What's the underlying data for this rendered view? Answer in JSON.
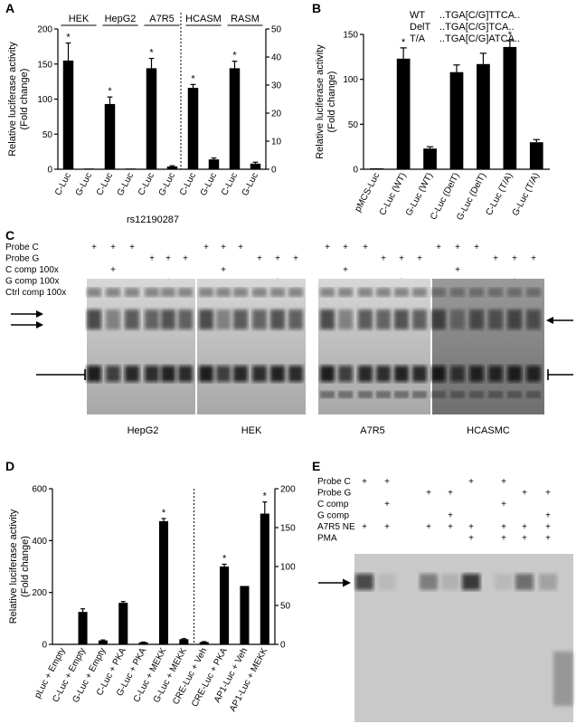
{
  "panels": {
    "A": "A",
    "B": "B",
    "C": "C",
    "D": "D",
    "E": "E"
  },
  "chart_data": [
    {
      "id": "A",
      "type": "bar",
      "ylabel": "Relative luciferase activity (Fold change)",
      "ylabel_lines": [
        "Relative luciferase activity",
        "(Fold change)"
      ],
      "xlabel": "rs12190287",
      "cell_lines": [
        "HEK",
        "HepG2",
        "A7R5",
        "HCASM",
        "RASM"
      ],
      "categories": [
        "C-Luc",
        "G-Luc",
        "C-Luc",
        "G-Luc",
        "C-Luc",
        "G-Luc",
        "C-Luc",
        "G-Luc",
        "C-Luc",
        "G-Luc"
      ],
      "values": [
        155,
        1,
        93,
        1,
        144,
        4,
        29,
        3.5,
        36,
        2
      ],
      "errors": [
        25,
        0,
        10,
        0,
        14,
        1,
        1.2,
        0.5,
        2.5,
        0.5
      ],
      "axis": [
        "left",
        "left",
        "left",
        "left",
        "left",
        "left",
        "right",
        "right",
        "right",
        "right"
      ],
      "significant": [
        true,
        false,
        true,
        false,
        true,
        false,
        true,
        false,
        true,
        false
      ],
      "ylim_left": [
        0,
        200
      ],
      "yticks_left": [
        "0",
        "50",
        "100",
        "150",
        "200"
      ],
      "ylim_right": [
        0,
        50
      ],
      "yticks_right": [
        "0",
        "10",
        "20",
        "30",
        "40",
        "50"
      ],
      "star": "*"
    },
    {
      "id": "B",
      "type": "bar",
      "ylabel": "Relative luciferase activity (Fold change)",
      "ylabel_lines": [
        "Relative luciferase activity",
        "(Fold change)"
      ],
      "categories": [
        "pMCS-Luc",
        "C-Luc (WT)",
        "G-Luc (WT)",
        "C-Luc (DelT)",
        "G-Luc (DelT)",
        "C-Luc (T/A)",
        "G-Luc (T/A)"
      ],
      "values": [
        1,
        123,
        23,
        108,
        117,
        136,
        30
      ],
      "errors": [
        0,
        12,
        2,
        8,
        12,
        7,
        3
      ],
      "significant": [
        false,
        true,
        false,
        false,
        false,
        true,
        false
      ],
      "ylim": [
        0,
        150
      ],
      "yticks": [
        "0",
        "50",
        "100",
        "150"
      ],
      "legend": [
        {
          "key": "WT",
          "seq": "..TGA[C/G]TTCA.."
        },
        {
          "key": "DelT",
          "seq": "..TGA[C/G]TCA.."
        },
        {
          "key": "T/A",
          "seq": "..TGA[C/G]ATCA.."
        }
      ],
      "star": "*"
    },
    {
      "id": "D",
      "type": "bar",
      "ylabel": "Relative luciferase activity (Fold change)",
      "ylabel_lines": [
        "Relative luciferase activity",
        "(Fold change)"
      ],
      "categories": [
        "pLuc + Empty",
        "C-Luc + Empty",
        "G-Luc + Empty",
        "C-Luc + PKA",
        "G-Luc + PKA",
        "C-Luc + MEKK",
        "G-Luc + MEKK",
        "CRE-Luc + Veh",
        "CRE-Luc + PKA",
        "AP1-Luc + Veh",
        "AP1-Luc + MEKK"
      ],
      "values": [
        1,
        125,
        15,
        160,
        8,
        475,
        20,
        3,
        100,
        75,
        168
      ],
      "errors": [
        0,
        12,
        2,
        5,
        1,
        10,
        2,
        0.5,
        3,
        0,
        15
      ],
      "axis": [
        "left",
        "left",
        "left",
        "left",
        "left",
        "left",
        "left",
        "right",
        "right",
        "right",
        "right"
      ],
      "significant": [
        false,
        false,
        false,
        false,
        false,
        true,
        false,
        false,
        true,
        false,
        true
      ],
      "ylim_left": [
        0,
        600
      ],
      "yticks_left": [
        "0",
        "200",
        "400",
        "600"
      ],
      "ylim_right": [
        0,
        200
      ],
      "yticks_right": [
        "0",
        "50",
        "100",
        "150",
        "200"
      ],
      "star": "*"
    }
  ],
  "gel_c": {
    "row_labels": [
      "Probe C",
      "Probe G",
      "C comp 100x",
      "G comp 100x",
      "Ctrl comp 100x"
    ],
    "plus": "+",
    "cell_lines": [
      "HepG2",
      "HEK",
      "A7R5",
      "HCASMC"
    ]
  },
  "gel_e": {
    "row_labels": [
      "Probe C",
      "Probe G",
      "C comp",
      "G comp",
      "A7R5 NE",
      "PMA"
    ],
    "plus": "+"
  }
}
